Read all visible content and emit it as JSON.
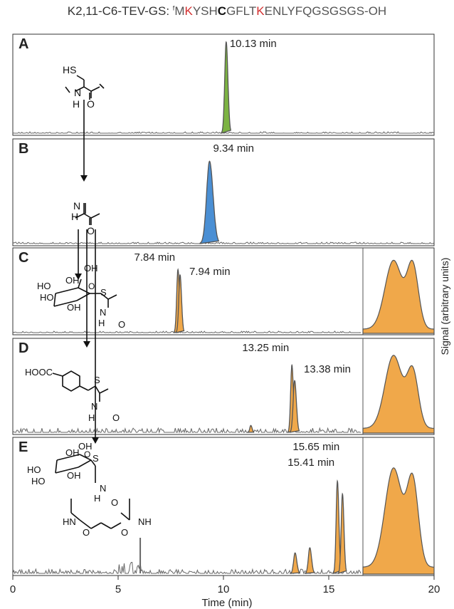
{
  "header": {
    "prefix": "K2,11-C6-TEV-GS: ",
    "nterm": "f",
    "parts": [
      {
        "t": "M",
        "s": "grey"
      },
      {
        "t": "K",
        "s": "red"
      },
      {
        "t": "YSH",
        "s": "grey"
      },
      {
        "t": "C",
        "s": "bold"
      },
      {
        "t": "GFLT",
        "s": "grey"
      },
      {
        "t": "K",
        "s": "red"
      },
      {
        "t": "ENLYFQGSGSGS-OH",
        "s": "grey"
      }
    ]
  },
  "colors": {
    "A": "#7cb342",
    "B": "#4a8fd4",
    "orange": "#f0a84a",
    "trace": "#555555",
    "baseline": "#666666"
  },
  "chart_data": {
    "type": "line",
    "xlabel": "Time (min)",
    "ylabel": "Signal (arbitrary units)",
    "xlim": [
      0,
      20
    ],
    "xticks": [
      0,
      5,
      10,
      15,
      20
    ],
    "panels": [
      {
        "label": "A",
        "fill": "A",
        "inset": false,
        "peaks": [
          {
            "x": 10.13,
            "h": 1.0,
            "w": 0.07
          }
        ],
        "annotations": [
          {
            "text": "10.13 min"
          }
        ]
      },
      {
        "label": "B",
        "fill": "B",
        "inset": false,
        "peaks": [
          {
            "x": 9.34,
            "h": 0.85,
            "w": 0.14
          }
        ],
        "annotations": [
          {
            "text": "9.34 min"
          }
        ]
      },
      {
        "label": "C",
        "fill": "orange",
        "inset": true,
        "peaks": [
          {
            "x": 7.84,
            "h": 0.82,
            "w": 0.06
          },
          {
            "x": 7.94,
            "h": 0.75,
            "w": 0.06
          }
        ],
        "annotations": [
          {
            "text": "7.84 min"
          },
          {
            "text": "7.94 min"
          }
        ]
      },
      {
        "label": "D",
        "fill": "orange",
        "inset": true,
        "peaks": [
          {
            "x": 11.3,
            "h": 0.08,
            "w": 0.05
          },
          {
            "x": 13.25,
            "h": 0.78,
            "w": 0.06
          },
          {
            "x": 13.38,
            "h": 0.6,
            "w": 0.07
          }
        ],
        "annotations": [
          {
            "text": "13.25 min"
          },
          {
            "text": "13.38 min"
          }
        ]
      },
      {
        "label": "E",
        "fill": "orange",
        "inset": true,
        "peaks": [
          {
            "x": 13.4,
            "h": 0.16,
            "w": 0.07
          },
          {
            "x": 14.1,
            "h": 0.2,
            "w": 0.07
          },
          {
            "x": 15.41,
            "h": 0.72,
            "w": 0.06
          },
          {
            "x": 15.65,
            "h": 0.62,
            "w": 0.06
          }
        ],
        "annotations": [
          {
            "text": "15.65 min"
          },
          {
            "text": "15.41 min"
          }
        ]
      }
    ]
  },
  "structures": {
    "A": {
      "labels": [
        "HS",
        "N",
        "H",
        "O"
      ]
    },
    "B": {
      "labels": [
        "N",
        "H",
        "O"
      ]
    },
    "C": {
      "labels": [
        "OH",
        "OH",
        "HO",
        "HO",
        "OH",
        "O",
        "S",
        "N",
        "H",
        "O"
      ]
    },
    "D": {
      "labels": [
        "HOOC",
        "S",
        "N",
        "H",
        "O"
      ]
    },
    "E": {
      "labels": [
        "OH",
        "OH",
        "HO",
        "HO",
        "OH",
        "O",
        "S",
        "N",
        "H",
        "O",
        "HN",
        "NH",
        "O",
        "O"
      ]
    }
  }
}
